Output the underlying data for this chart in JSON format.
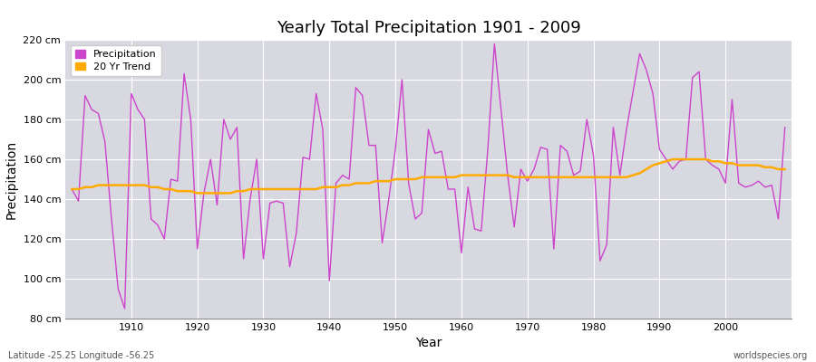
{
  "title": "Yearly Total Precipitation 1901 - 2009",
  "xlabel": "Year",
  "ylabel": "Precipitation",
  "subtitle_left": "Latitude -25.25 Longitude -56.25",
  "subtitle_right": "worldspecies.org",
  "legend_entries": [
    "Precipitation",
    "20 Yr Trend"
  ],
  "precip_color": "#cc44cc",
  "trend_color": "#ffaa00",
  "fig_bg_color": "#ffffff",
  "plot_bg_color": "#d8d8e0",
  "grid_color": "#ffffff",
  "ylim": [
    80,
    220
  ],
  "yticks": [
    80,
    100,
    120,
    140,
    160,
    180,
    200,
    220
  ],
  "xlim": [
    1900,
    2010
  ],
  "xticks": [
    1910,
    1920,
    1930,
    1940,
    1950,
    1960,
    1970,
    1980,
    1990,
    2000
  ],
  "years": [
    1901,
    1902,
    1903,
    1904,
    1905,
    1906,
    1907,
    1908,
    1909,
    1910,
    1911,
    1912,
    1913,
    1914,
    1915,
    1916,
    1917,
    1918,
    1919,
    1920,
    1921,
    1922,
    1923,
    1924,
    1925,
    1926,
    1927,
    1928,
    1929,
    1930,
    1931,
    1932,
    1933,
    1934,
    1935,
    1936,
    1937,
    1938,
    1939,
    1940,
    1941,
    1942,
    1943,
    1944,
    1945,
    1946,
    1947,
    1948,
    1949,
    1950,
    1951,
    1952,
    1953,
    1954,
    1955,
    1956,
    1957,
    1958,
    1959,
    1960,
    1961,
    1962,
    1963,
    1964,
    1965,
    1966,
    1967,
    1968,
    1969,
    1970,
    1971,
    1972,
    1973,
    1974,
    1975,
    1976,
    1977,
    1978,
    1979,
    1980,
    1981,
    1982,
    1983,
    1984,
    1985,
    1986,
    1987,
    1988,
    1989,
    1990,
    1991,
    1992,
    1993,
    1994,
    1995,
    1996,
    1997,
    1998,
    1999,
    2000,
    2001,
    2002,
    2003,
    2004,
    2005,
    2006,
    2007,
    2008,
    2009
  ],
  "precip": [
    145,
    139,
    192,
    185,
    183,
    169,
    130,
    95,
    85,
    193,
    185,
    180,
    130,
    127,
    120,
    150,
    149,
    203,
    180,
    115,
    143,
    160,
    137,
    180,
    170,
    176,
    110,
    140,
    160,
    110,
    138,
    139,
    138,
    106,
    123,
    161,
    160,
    193,
    175,
    99,
    148,
    152,
    150,
    196,
    192,
    167,
    167,
    118,
    140,
    165,
    200,
    148,
    130,
    133,
    175,
    163,
    164,
    145,
    145,
    113,
    146,
    125,
    124,
    165,
    218,
    185,
    152,
    126,
    155,
    149,
    155,
    166,
    165,
    115,
    167,
    164,
    152,
    154,
    180,
    162,
    109,
    117,
    176,
    152,
    175,
    194,
    213,
    205,
    193,
    165,
    160,
    155,
    159,
    160,
    201,
    204,
    160,
    157,
    155,
    148,
    190,
    148,
    146,
    147,
    149,
    146,
    147,
    130,
    176
  ],
  "trend": [
    145,
    145,
    146,
    146,
    147,
    147,
    147,
    147,
    147,
    147,
    147,
    147,
    146,
    146,
    145,
    145,
    144,
    144,
    144,
    143,
    143,
    143,
    143,
    143,
    143,
    144,
    144,
    145,
    145,
    145,
    145,
    145,
    145,
    145,
    145,
    145,
    145,
    145,
    146,
    146,
    146,
    147,
    147,
    148,
    148,
    148,
    149,
    149,
    149,
    150,
    150,
    150,
    150,
    151,
    151,
    151,
    151,
    151,
    151,
    152,
    152,
    152,
    152,
    152,
    152,
    152,
    152,
    151,
    151,
    151,
    151,
    151,
    151,
    151,
    151,
    151,
    151,
    151,
    151,
    151,
    151,
    151,
    151,
    151,
    151,
    152,
    153,
    155,
    157,
    158,
    159,
    160,
    160,
    160,
    160,
    160,
    160,
    159,
    159,
    158,
    158,
    157,
    157,
    157,
    157,
    156,
    156,
    155,
    155
  ]
}
